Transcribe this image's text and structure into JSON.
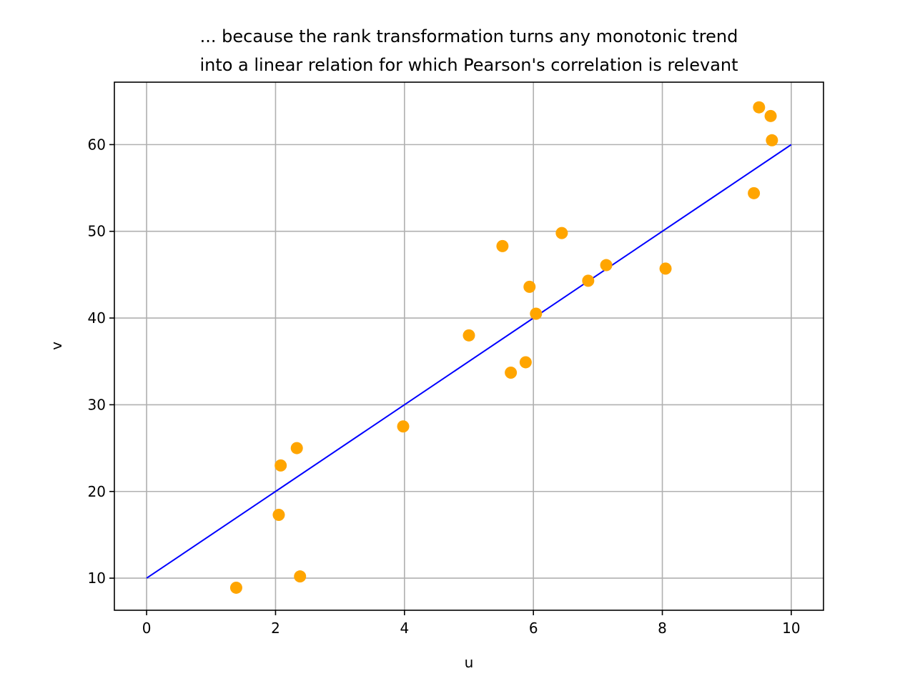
{
  "chart_data": {
    "type": "scatter",
    "title_lines": [
      "... because the rank transformation turns any monotonic trend",
      "into a linear relation for which Pearson's correlation is relevant"
    ],
    "xlabel": "u",
    "ylabel": "v",
    "xlim": [
      -0.5,
      10.5
    ],
    "ylim": [
      6.3,
      67.2
    ],
    "xticks": [
      0,
      2,
      4,
      6,
      8,
      10
    ],
    "yticks": [
      10,
      20,
      30,
      40,
      50,
      60
    ],
    "grid": true,
    "legend": "none",
    "points": {
      "color": "#FFA500",
      "x": [
        1.39,
        2.05,
        2.08,
        2.33,
        2.38,
        3.98,
        5.0,
        5.52,
        5.65,
        5.88,
        5.94,
        6.04,
        6.44,
        6.85,
        7.13,
        8.05,
        9.42,
        9.5,
        9.68,
        9.7
      ],
      "y": [
        8.9,
        17.3,
        23.0,
        25.0,
        10.2,
        27.5,
        38.0,
        48.3,
        33.7,
        34.9,
        43.6,
        40.5,
        49.8,
        44.3,
        46.1,
        45.7,
        54.4,
        64.3,
        63.3,
        60.5
      ]
    },
    "line": {
      "color": "#0000FF",
      "x": [
        0,
        10
      ],
      "y": [
        10,
        60
      ]
    },
    "grid_color": "#b0b0b0"
  }
}
